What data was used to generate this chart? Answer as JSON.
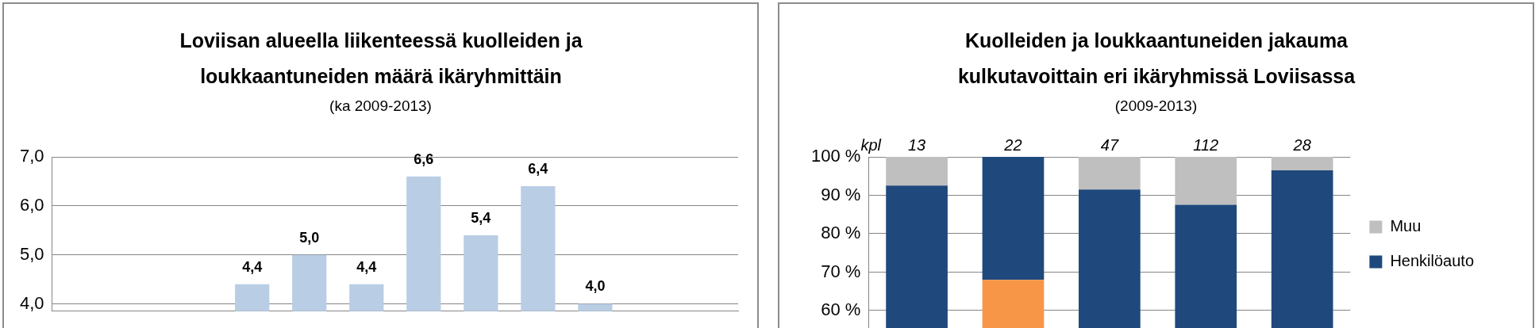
{
  "chart_data": [
    {
      "type": "bar",
      "title": "Loviisan alueella liikenteessä kuolleiden ja loukkaantuneiden määrä ikäryhmittäin",
      "subtitle": "(ka 2009-2013)",
      "categories": [
        null,
        null,
        null,
        null,
        null,
        null,
        null,
        null,
        null,
        null,
        null,
        null
      ],
      "values": [
        null,
        null,
        null,
        4.4,
        5.0,
        4.4,
        6.6,
        5.4,
        6.4,
        4.0,
        null,
        null
      ],
      "value_labels": [
        null,
        null,
        null,
        "4,4",
        "5,0",
        "4,4",
        "6,6",
        "5,4",
        "6,4",
        "4,0",
        null,
        null
      ],
      "color": "#b9cde5",
      "ylim": [
        3.85,
        7
      ],
      "yticks": [
        {
          "value": 4,
          "label": "4,0"
        },
        {
          "value": 5,
          "label": "5,0"
        },
        {
          "value": 6,
          "label": "6,0"
        },
        {
          "value": 7,
          "label": "7,0"
        }
      ],
      "grid": "y",
      "tick_labels": "y"
    },
    {
      "type": "bar",
      "title": "Kuolleiden ja loukkaantuneiden jakauma kulkutavoittain eri ikäryhmissä Loviisassa",
      "subtitle": "(2009-2013)",
      "categories": [
        null,
        null,
        null,
        null,
        null
      ],
      "stacked": true,
      "series": [
        {
          "color": "#f79646",
          "values": [
            null,
            68,
            null,
            null,
            null
          ]
        },
        {
          "name": "Henkilöauto",
          "color": "#1f497d",
          "values": [
            92.5,
            32,
            91.5,
            87.5,
            96.5
          ]
        },
        {
          "name": "Muu",
          "color": "#bfbfbf",
          "values": [
            7.5,
            0,
            8.5,
            12.5,
            3.5
          ]
        }
      ],
      "annotations": [
        "kpl",
        "13",
        "22",
        "47",
        "112",
        "28"
      ],
      "ylim": [
        0,
        100
      ],
      "yticks": [
        {
          "value": 60,
          "label": "60 %"
        },
        {
          "value": 70,
          "label": "70 %"
        },
        {
          "value": 80,
          "label": "80 %"
        },
        {
          "value": 90,
          "label": "90 %"
        },
        {
          "value": 100,
          "label": "100 %"
        }
      ],
      "grid": "y",
      "tick_labels": "y",
      "legend": "right"
    }
  ]
}
